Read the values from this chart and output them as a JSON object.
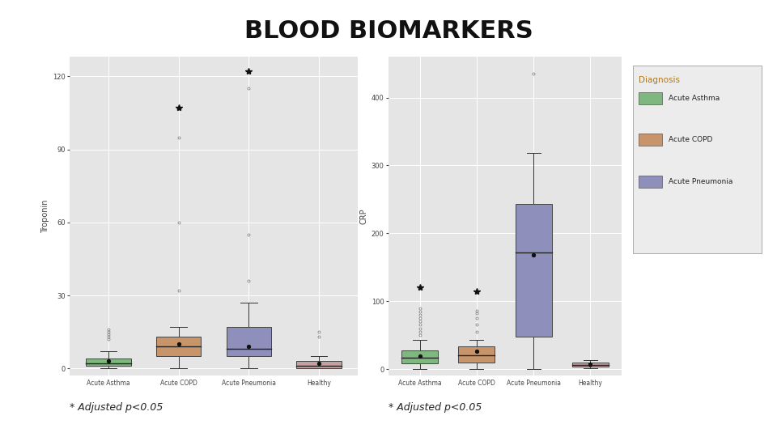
{
  "title": "BLOOD BIOMARKERS",
  "title_fontsize": 22,
  "background_color": "#ffffff",
  "plot_bg_color": "#e5e5e5",
  "footnote": "* Adjusted p<0.05",
  "footnote_fontsize": 9,
  "categories": [
    "Acute Asthma",
    "Acute COPD",
    "Acute Pneumonia",
    "Healthy"
  ],
  "colors": {
    "Acute Asthma": "#7fb87f",
    "Acute COPD": "#c8956a",
    "Acute Pneumonia": "#8f8fbb",
    "Healthy": "#c4a0a0"
  },
  "legend_colors": {
    "Acute Asthma": "#7fb87f",
    "Acute COPD": "#c8956a",
    "Acute Pneumonia": "#8f8fbb"
  },
  "troponin": {
    "ylabel": "Troponin",
    "ylim": [
      -3,
      128
    ],
    "yticks": [
      0,
      30,
      60,
      90,
      120
    ],
    "boxes": {
      "Acute Asthma": {
        "q1": 1,
        "median": 2,
        "q3": 4,
        "whislo": 0,
        "whishi": 7,
        "mean": 3,
        "fliers_open": [
          12,
          13,
          14,
          15,
          16
        ]
      },
      "Acute COPD": {
        "q1": 5,
        "median": 9,
        "q3": 13,
        "whislo": 0,
        "whishi": 17,
        "mean": 10,
        "fliers_open": [
          32,
          60,
          95
        ],
        "fliers_sig": [
          107
        ]
      },
      "Acute Pneumonia": {
        "q1": 5,
        "median": 8,
        "q3": 17,
        "whislo": 0,
        "whishi": 27,
        "mean": 9,
        "fliers_open": [
          36,
          55,
          115
        ],
        "fliers_sig": [
          122
        ]
      },
      "Healthy": {
        "q1": 0,
        "median": 1,
        "q3": 3,
        "whislo": 0,
        "whishi": 5,
        "mean": 2,
        "fliers_open": [
          13,
          15
        ]
      }
    }
  },
  "crp": {
    "ylabel": "CRP",
    "ylim": [
      -10,
      460
    ],
    "yticks": [
      0,
      100,
      200,
      300,
      400
    ],
    "boxes": {
      "Acute Asthma": {
        "q1": 8,
        "median": 17,
        "q3": 27,
        "whislo": 0,
        "whishi": 43,
        "mean": 19,
        "fliers_open": [
          50,
          55,
          60,
          65,
          70,
          75,
          80,
          85,
          90
        ],
        "fliers_sig": [
          120
        ]
      },
      "Acute COPD": {
        "q1": 9,
        "median": 20,
        "q3": 33,
        "whislo": 0,
        "whishi": 43,
        "mean": 26,
        "fliers_open": [
          55,
          65,
          75,
          82,
          86
        ],
        "fliers_sig": [
          115
        ]
      },
      "Acute Pneumonia": {
        "q1": 48,
        "median": 172,
        "q3": 243,
        "whislo": 0,
        "whishi": 318,
        "mean": 168,
        "fliers_open": [
          435
        ]
      },
      "Healthy": {
        "q1": 3,
        "median": 6,
        "q3": 9,
        "whislo": 1,
        "whishi": 13,
        "mean": 7,
        "fliers_open": []
      }
    }
  }
}
